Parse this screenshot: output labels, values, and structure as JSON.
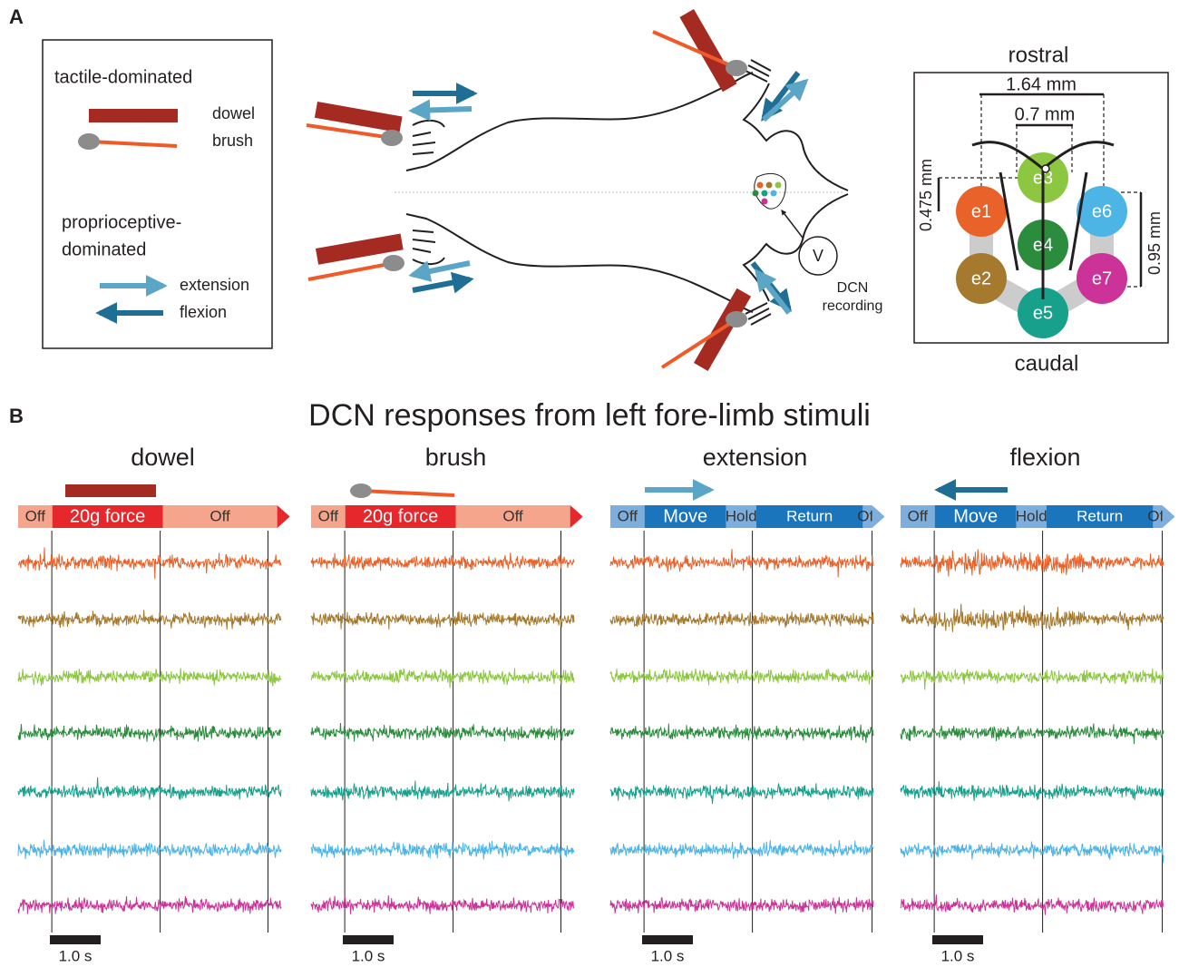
{
  "panel_a": {
    "label": "A",
    "legend": {
      "tactile_title": "tactile-dominated",
      "dowel": "dowel",
      "brush": "brush",
      "proprio_title": [
        "proprioceptive-",
        "dominated"
      ],
      "extension": "extension",
      "flexion": "flexion",
      "dowel_color": "#a52a22",
      "brush_color": "#f05a28",
      "extension_color": "#5ba6c6",
      "flexion_color": "#1f6e96"
    },
    "recording": {
      "probe": "V",
      "label": [
        "DCN",
        "recording"
      ]
    },
    "electrode_map": {
      "rostral": "rostral",
      "caudal": "caudal",
      "width_outer": "1.64 mm",
      "width_inner": "0.7 mm",
      "offset": "0.475 mm",
      "pitch": "0.95 mm",
      "electrodes": [
        {
          "label": "e1",
          "color": "#e8622a"
        },
        {
          "label": "e2",
          "color": "#a67a2e"
        },
        {
          "label": "e3",
          "color": "#8dc640"
        },
        {
          "label": "e4",
          "color": "#2c8c3e"
        },
        {
          "label": "e5",
          "color": "#17a08c"
        },
        {
          "label": "e6",
          "color": "#4db4e6"
        },
        {
          "label": "e7",
          "color": "#cc3399"
        }
      ]
    }
  },
  "panel_b": {
    "label": "B",
    "title": "DCN responses from left fore-limb stimuli",
    "columns": [
      {
        "title": "dowel",
        "kind": "tactile",
        "timeline": [
          "Off",
          "20g force",
          "Off"
        ],
        "scale": "1.0 s"
      },
      {
        "title": "brush",
        "kind": "tactile",
        "timeline": [
          "Off",
          "20g force",
          "Off"
        ],
        "scale": "1.0 s"
      },
      {
        "title": "extension",
        "kind": "proprioceptive",
        "timeline": [
          "Off",
          "Move",
          "Hold",
          "Return",
          "Off"
        ],
        "scale": "1.0 s"
      },
      {
        "title": "flexion",
        "kind": "proprioceptive",
        "timeline": [
          "Off",
          "Move",
          "Hold",
          "Return",
          "Off"
        ],
        "scale": "1.0 s"
      }
    ]
  }
}
